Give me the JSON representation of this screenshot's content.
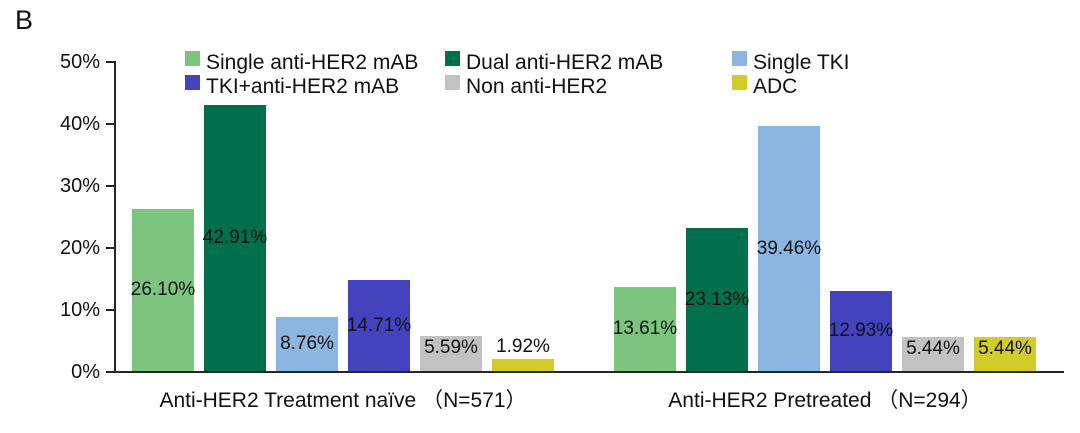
{
  "panel_label": "B",
  "chart_data": {
    "type": "bar",
    "title": "",
    "xlabel": "",
    "ylabel": "",
    "ylim": [
      0,
      50
    ],
    "yticks": [
      "0%",
      "10%",
      "20%",
      "30%",
      "40%",
      "50%"
    ],
    "grid": false,
    "legend_position": "top",
    "categories": [
      "Anti-HER2 Treatment naïve （N=571）",
      "Anti-HER2 Pretreated （N=294）"
    ],
    "series": [
      {
        "name": "Single anti-HER2 mAB",
        "color": "#7DC57F",
        "values": [
          26.1,
          13.61
        ],
        "labels": [
          "26.10%",
          "13.61%"
        ]
      },
      {
        "name": "Dual anti-HER2 mAB",
        "color": "#006F4B",
        "values": [
          42.91,
          23.13
        ],
        "labels": [
          "42.91%",
          "23.13%"
        ]
      },
      {
        "name": "Single TKI",
        "color": "#8CB6E2",
        "values": [
          8.76,
          39.46
        ],
        "labels": [
          "8.76%",
          "39.46%"
        ]
      },
      {
        "name": "TKI+anti-HER2 mAB",
        "color": "#4343BD",
        "values": [
          14.71,
          12.93
        ],
        "labels": [
          "14.71%",
          "12.93%"
        ]
      },
      {
        "name": "Non anti-HER2",
        "color": "#C2C2C2",
        "values": [
          5.59,
          5.44
        ],
        "labels": [
          "5.59%",
          "5.44%"
        ]
      },
      {
        "name": "ADC",
        "color": "#D2CB2A",
        "values": [
          1.92,
          5.44
        ],
        "labels": [
          "1.92%",
          "5.44%"
        ]
      }
    ],
    "axis_color": "#262626"
  }
}
